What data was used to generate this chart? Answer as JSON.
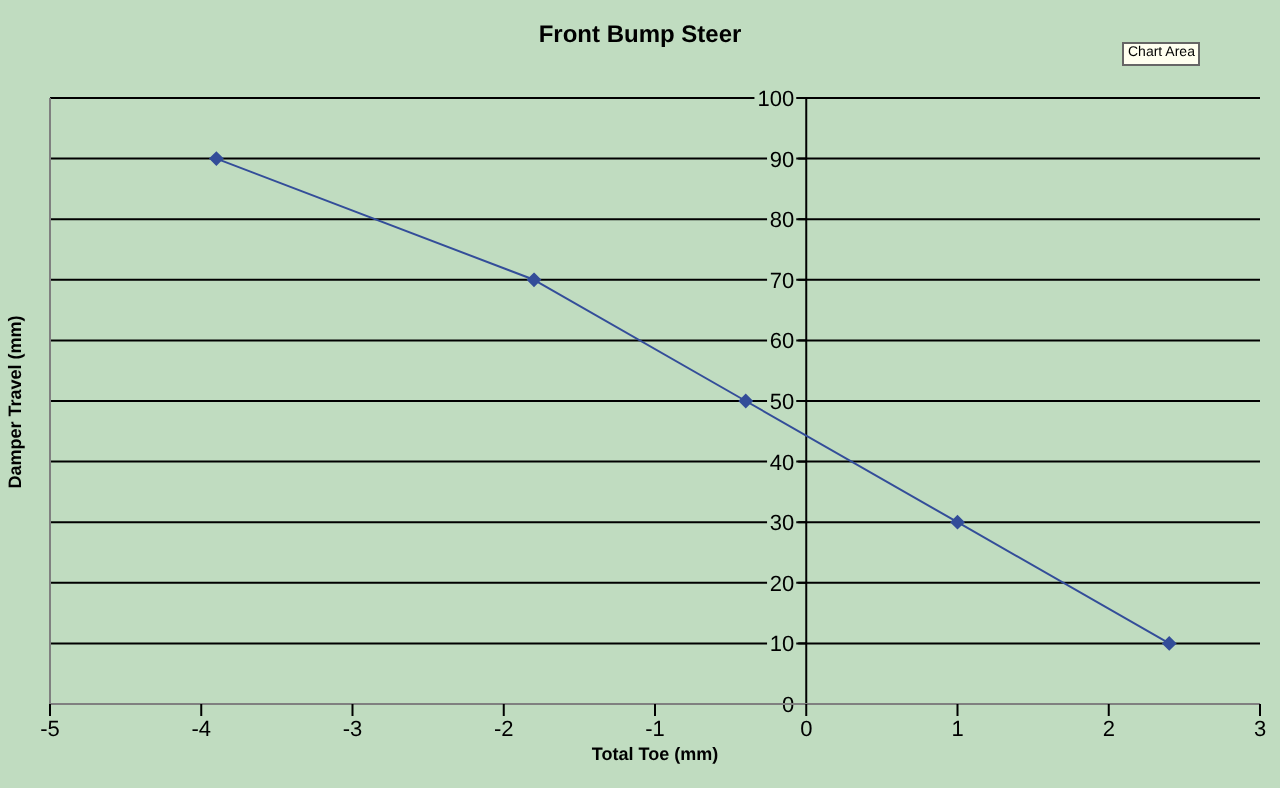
{
  "chart_data": {
    "type": "line",
    "title": "Front Bump Steer",
    "xlabel": "Total Toe (mm)",
    "ylabel": "Damper Travel (mm)",
    "annotations": [
      "Chart Area"
    ],
    "x": [
      -3.9,
      -1.8,
      -0.4,
      1,
      2.4
    ],
    "series": [
      {
        "color": "#334d99",
        "values": [
          90,
          70,
          50,
          30,
          10
        ]
      }
    ],
    "xlim": [
      -5,
      3
    ],
    "xticks": [
      -5,
      -4,
      -3,
      -2,
      -1,
      0,
      1,
      2,
      3
    ],
    "ylim": [
      0,
      100
    ],
    "yticks": [
      0,
      10,
      20,
      30,
      40,
      50,
      60,
      70,
      80,
      90,
      100
    ],
    "grid": "y",
    "legend": false,
    "marker": "diamond",
    "line_style": "solid"
  }
}
